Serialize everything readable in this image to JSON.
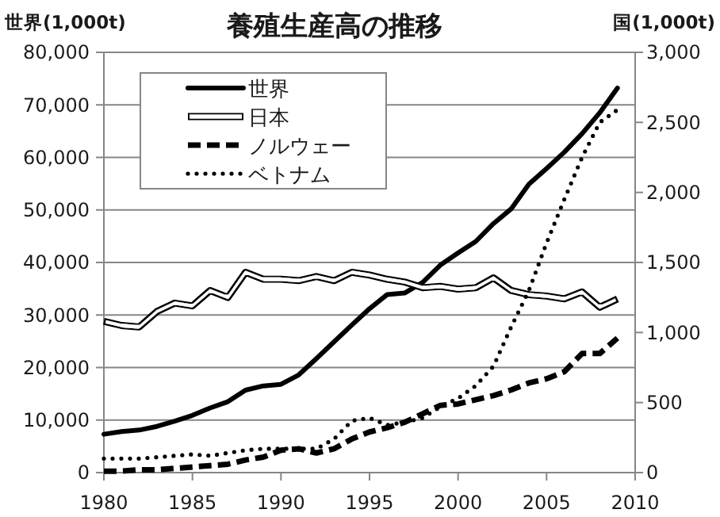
{
  "chart_data": {
    "type": "line",
    "title": "養殖生産高の推移",
    "ylabel": "世界(1,000t)",
    "y2label": "国(1,000t)",
    "x": [
      1980,
      1981,
      1982,
      1983,
      1984,
      1985,
      1986,
      1987,
      1988,
      1989,
      1990,
      1991,
      1992,
      1993,
      1994,
      1995,
      1996,
      1997,
      1998,
      1999,
      2000,
      2001,
      2002,
      2003,
      2004,
      2005,
      2006,
      2007,
      2008,
      2009
    ],
    "series": [
      {
        "name": "世界",
        "color": "#000000",
        "line_style": "solid",
        "values": [
          7300,
          7800,
          8100,
          8800,
          9800,
          10900,
          12300,
          13500,
          15700,
          16500,
          16800,
          18600,
          21700,
          24900,
          28100,
          31200,
          33900,
          34200,
          36200,
          39500,
          41800,
          44000,
          47400,
          50200,
          54900,
          57900,
          61000,
          64500,
          68500,
          73200
        ]
      },
      {
        "name": "日本",
        "color": "#000000",
        "line_style": "solid",
        "axis": "y2",
        "values": [
          1080,
          1050,
          1040,
          1150,
          1210,
          1190,
          1300,
          1250,
          1430,
          1380,
          1380,
          1370,
          1400,
          1370,
          1430,
          1410,
          1380,
          1360,
          1320,
          1330,
          1310,
          1320,
          1390,
          1300,
          1270,
          1260,
          1240,
          1290,
          1180,
          1240
        ]
      },
      {
        "name": "ノルウェー",
        "color": "#000000",
        "line_style": "dashed",
        "axis": "y2",
        "values": [
          10,
          10,
          20,
          20,
          30,
          40,
          50,
          60,
          90,
          110,
          160,
          170,
          140,
          170,
          240,
          290,
          320,
          360,
          420,
          480,
          490,
          520,
          550,
          590,
          640,
          670,
          720,
          850,
          850,
          960
        ]
      },
      {
        "name": "ベトナム",
        "color": "#000000",
        "line_style": "dotted",
        "axis": "y2",
        "values": [
          100,
          100,
          100,
          110,
          120,
          130,
          120,
          140,
          160,
          170,
          170,
          170,
          170,
          240,
          370,
          390,
          340,
          360,
          390,
          470,
          530,
          620,
          760,
          1040,
          1300,
          1640,
          1950,
          2250,
          2500,
          2590
        ]
      }
    ],
    "xlim": [
      1980,
      2010
    ],
    "xticks": [
      1980,
      1985,
      1990,
      1995,
      2000,
      2005,
      2010
    ],
    "ylim": [
      0,
      80000
    ],
    "yticks": [
      0,
      {
        "value": 10000,
        "label": "10,000"
      },
      {
        "value": 20000,
        "label": "20,000"
      },
      {
        "value": 30000,
        "label": "30,000"
      },
      {
        "value": 40000,
        "label": "40,000"
      },
      {
        "value": 50000,
        "label": "50,000"
      },
      {
        "value": 60000,
        "label": "60,000"
      },
      {
        "value": 70000,
        "label": "70,000"
      },
      {
        "value": 80000,
        "label": "80,000"
      }
    ],
    "y2lim": [
      0,
      3000
    ],
    "y2ticks": [
      0,
      500,
      {
        "value": 1000,
        "label": "1,000"
      },
      {
        "value": 1500,
        "label": "1,500"
      },
      {
        "value": 2000,
        "label": "2,000"
      },
      {
        "value": 2500,
        "label": "2,500"
      },
      {
        "value": 3000,
        "label": "3,000"
      }
    ],
    "grid": "y",
    "legend": "top left"
  }
}
